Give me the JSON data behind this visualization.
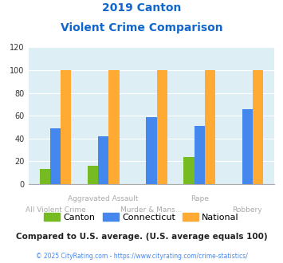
{
  "title_line1": "2019 Canton",
  "title_line2": "Violent Crime Comparison",
  "canton_values": [
    13,
    16,
    0,
    24,
    0
  ],
  "connecticut_values": [
    49,
    42,
    59,
    51,
    66
  ],
  "national_values": [
    100,
    100,
    100,
    100,
    100
  ],
  "canton_color": "#77bb22",
  "connecticut_color": "#4488ee",
  "national_color": "#ffaa33",
  "ylim": [
    0,
    120
  ],
  "yticks": [
    0,
    20,
    40,
    60,
    80,
    100,
    120
  ],
  "title_color": "#1166cc",
  "background_color": "#ddeef5",
  "legend_labels": [
    "Canton",
    "Connecticut",
    "National"
  ],
  "footer_text": "Compared to U.S. average. (U.S. average equals 100)",
  "copyright_text": "© 2025 CityRating.com - https://www.cityrating.com/crime-statistics/",
  "footer_color": "#222222",
  "copyright_color": "#4488ee",
  "bar_width": 0.22,
  "upper_row_labels": {
    "1": "Aggravated Assault",
    "3": "Rape"
  },
  "lower_row_labels": {
    "0": "All Violent Crime",
    "2": "Murder & Mans...",
    "4": "Robbery"
  },
  "xlabel_color": "#aaaaaa"
}
